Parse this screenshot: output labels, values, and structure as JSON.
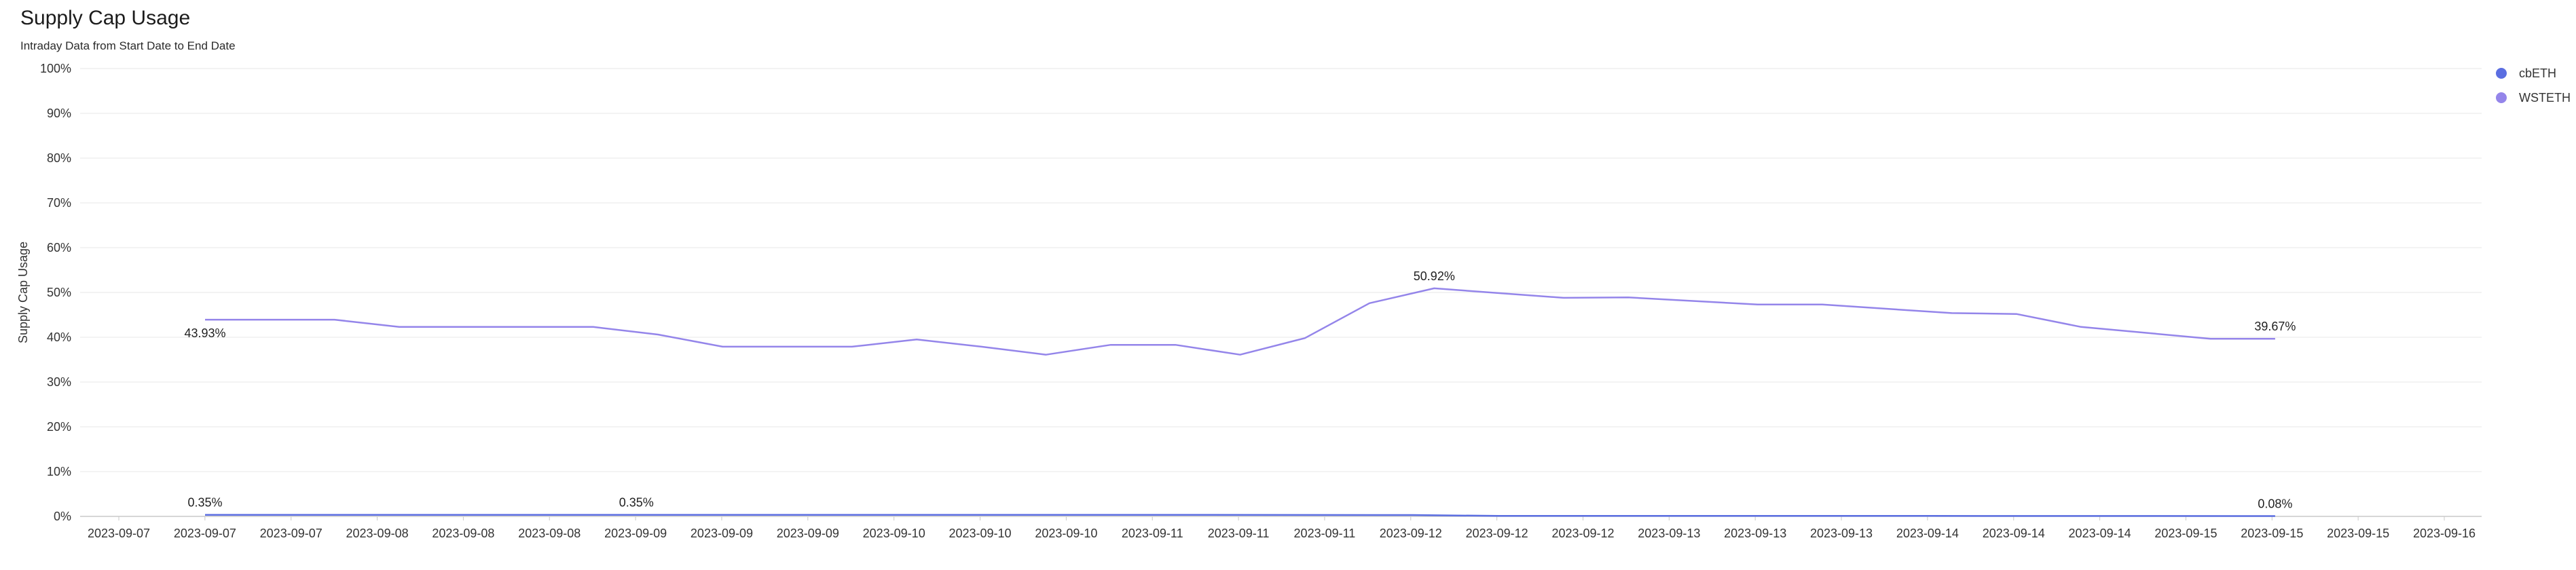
{
  "chart_data": {
    "type": "line",
    "title": "Supply Cap Usage",
    "subtitle": "Intraday Data from Start Date to End Date",
    "xlabel": "",
    "ylabel": "Supply Cap Usage",
    "ylim": [
      0,
      100
    ],
    "y_ticks": [
      "0%",
      "10%",
      "20%",
      "30%",
      "40%",
      "50%",
      "60%",
      "70%",
      "80%",
      "90%",
      "100%"
    ],
    "x_ticks": [
      "2023-09-07",
      "2023-09-07",
      "2023-09-07",
      "2023-09-08",
      "2023-09-08",
      "2023-09-08",
      "2023-09-09",
      "2023-09-09",
      "2023-09-09",
      "2023-09-10",
      "2023-09-10",
      "2023-09-10",
      "2023-09-11",
      "2023-09-11",
      "2023-09-11",
      "2023-09-12",
      "2023-09-12",
      "2023-09-12",
      "2023-09-13",
      "2023-09-13",
      "2023-09-13",
      "2023-09-14",
      "2023-09-14",
      "2023-09-14",
      "2023-09-15",
      "2023-09-15",
      "2023-09-15",
      "2023-09-16"
    ],
    "grid": true,
    "legend_position": "top-right",
    "series": [
      {
        "name": "cbETH",
        "color": "#5b6ee1",
        "x": [
          "2023-09-07 08:00",
          "2023-09-09 00:00",
          "2023-09-10 00:00",
          "2023-09-11 00:00",
          "2023-09-12 00:00",
          "2023-09-12 08:00",
          "2023-09-13 00:00",
          "2023-09-14 00:00",
          "2023-09-15 08:00"
        ],
        "values": [
          0.35,
          0.35,
          0.35,
          0.35,
          0.3,
          0.1,
          0.1,
          0.1,
          0.08
        ],
        "labels": [
          {
            "index": 0,
            "text": "0.35%"
          },
          {
            "index": 1,
            "text": "0.35%"
          },
          {
            "index": 8,
            "text": "0.08%"
          }
        ]
      },
      {
        "name": "WSTETH",
        "color": "#9485ea",
        "x": [
          "2023-09-07 08:00",
          "2023-09-07 20:00",
          "2023-09-08 02:00",
          "2023-09-08 20:00",
          "2023-09-09 02:00",
          "2023-09-09 08:00",
          "2023-09-09 20:00",
          "2023-09-10 02:00",
          "2023-09-10 08:00",
          "2023-09-10 14:00",
          "2023-09-10 20:00",
          "2023-09-11 02:00",
          "2023-09-11 08:00",
          "2023-09-11 14:00",
          "2023-09-11 20:00",
          "2023-09-12 02:00",
          "2023-09-12 14:00",
          "2023-09-12 20:00",
          "2023-09-13 08:00",
          "2023-09-13 14:00",
          "2023-09-14 02:00",
          "2023-09-14 08:00",
          "2023-09-14 14:00",
          "2023-09-15 02:00",
          "2023-09-15 08:00"
        ],
        "values": [
          43.93,
          43.93,
          42.3,
          42.3,
          40.6,
          37.9,
          37.9,
          39.5,
          37.9,
          36.1,
          38.3,
          38.3,
          36.1,
          39.8,
          47.6,
          50.92,
          48.8,
          48.9,
          47.3,
          47.3,
          45.4,
          45.2,
          42.3,
          39.67,
          39.67
        ],
        "labels": [
          {
            "index": 0,
            "text": "43.93%"
          },
          {
            "index": 15,
            "text": "50.92%"
          },
          {
            "index": 24,
            "text": "39.67%"
          }
        ]
      }
    ]
  }
}
